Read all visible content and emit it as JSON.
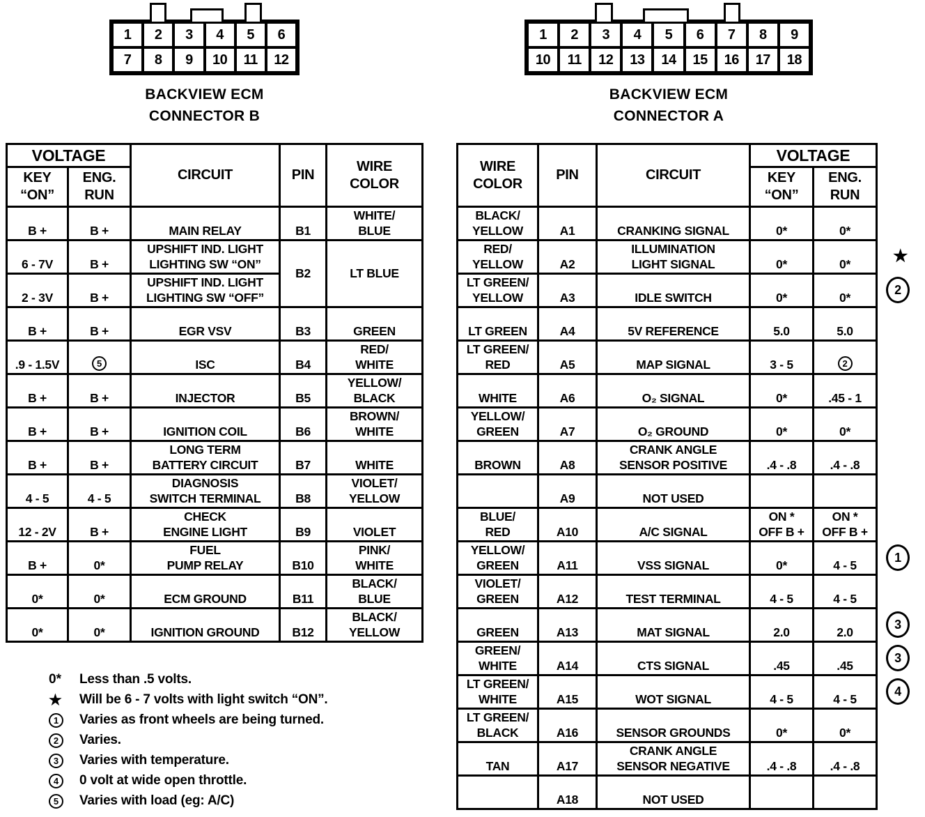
{
  "colors": {
    "ink": "#000000",
    "paper": "#ffffff"
  },
  "connector_b": {
    "label_line1": "BACKVIEW ECM",
    "label_line2": "CONNECTOR B",
    "row1": [
      "1",
      "2",
      "3",
      "4",
      "5",
      "6"
    ],
    "row2": [
      "7",
      "8",
      "9",
      "10",
      "11",
      "12"
    ]
  },
  "connector_a": {
    "label_line1": "BACKVIEW ECM",
    "label_line2": "CONNECTOR A",
    "row1": [
      "1",
      "2",
      "3",
      "4",
      "5",
      "6",
      "7",
      "8",
      "9"
    ],
    "row2": [
      "10",
      "11",
      "12",
      "13",
      "14",
      "15",
      "16",
      "17",
      "18"
    ]
  },
  "table_b": {
    "header": {
      "voltage": "VOLTAGE",
      "key_on": "KEY\n“ON”",
      "eng_run": "ENG.\nRUN",
      "circuit": "CIRCUIT",
      "pin": "PIN",
      "wire_color": "WIRE\nCOLOR"
    },
    "rows": [
      {
        "key_on": "B +",
        "eng_run": "B +",
        "circuit": "MAIN RELAY",
        "pin": "B1",
        "wire": "WHITE/\nBLUE"
      },
      {
        "key_on": "6 - 7V",
        "eng_run": "B +",
        "circuit": "UPSHIFT IND. LIGHT\nLIGHTING SW “ON”",
        "pin": "B2",
        "wire": "LT BLUE",
        "pin_rowspan": 2,
        "wire_rowspan": 2
      },
      {
        "key_on": "2 - 3V",
        "eng_run": "B +",
        "circuit": "UPSHIFT IND. LIGHT\nLIGHTING SW “OFF”",
        "pin": null,
        "wire": null
      },
      {
        "key_on": "B +",
        "eng_run": "B +",
        "circuit": "EGR VSV",
        "pin": "B3",
        "wire": "GREEN"
      },
      {
        "key_on": ".9 - 1.5V",
        "eng_run": {
          "circled": "5"
        },
        "circuit": "ISC",
        "pin": "B4",
        "wire": "RED/\nWHITE"
      },
      {
        "key_on": "B +",
        "eng_run": "B +",
        "circuit": "INJECTOR",
        "pin": "B5",
        "wire": "YELLOW/\nBLACK"
      },
      {
        "key_on": "B +",
        "eng_run": "B +",
        "circuit": "IGNITION COIL",
        "pin": "B6",
        "wire": "BROWN/\nWHITE"
      },
      {
        "key_on": "B +",
        "eng_run": "B +",
        "circuit": "LONG TERM\nBATTERY CIRCUIT",
        "pin": "B7",
        "wire": "WHITE"
      },
      {
        "key_on": "4 - 5",
        "eng_run": "4 - 5",
        "circuit": "DIAGNOSIS\nSWITCH TERMINAL",
        "pin": "B8",
        "wire": "VIOLET/\nYELLOW"
      },
      {
        "key_on": "12 - 2V",
        "eng_run": "B +",
        "circuit": "CHECK\nENGINE LIGHT",
        "pin": "B9",
        "wire": "VIOLET"
      },
      {
        "key_on": "B +",
        "eng_run": "0*",
        "circuit": "FUEL\nPUMP RELAY",
        "pin": "B10",
        "wire": "PINK/\nWHITE"
      },
      {
        "key_on": "0*",
        "eng_run": "0*",
        "circuit": "ECM GROUND",
        "pin": "B11",
        "wire": "BLACK/\nBLUE"
      },
      {
        "key_on": "0*",
        "eng_run": "0*",
        "circuit": "IGNITION GROUND",
        "pin": "B12",
        "wire": "BLACK/\nYELLOW"
      }
    ]
  },
  "table_a": {
    "header": {
      "wire_color": "WIRE\nCOLOR",
      "pin": "PIN",
      "circuit": "CIRCUIT",
      "voltage": "VOLTAGE",
      "key_on": "KEY\n“ON”",
      "eng_run": "ENG.\nRUN"
    },
    "rows": [
      {
        "wire": "BLACK/\nYELLOW",
        "pin": "A1",
        "circuit": "CRANKING SIGNAL",
        "key_on": "0*",
        "eng_run": "0*"
      },
      {
        "wire": "RED/\nYELLOW",
        "pin": "A2",
        "circuit": "ILLUMINATION\nLIGHT SIGNAL",
        "key_on": "0*",
        "eng_run": "0*",
        "annotation": {
          "star": true
        }
      },
      {
        "wire": "LT GREEN/\nYELLOW",
        "pin": "A3",
        "circuit": "IDLE SWITCH",
        "key_on": "0*",
        "eng_run": "0*",
        "annotation": {
          "circled": "2"
        }
      },
      {
        "wire": "LT GREEN",
        "pin": "A4",
        "circuit": "5V REFERENCE",
        "key_on": "5.0",
        "eng_run": "5.0"
      },
      {
        "wire": "LT GREEN/\nRED",
        "pin": "A5",
        "circuit": "MAP SIGNAL",
        "key_on": "3 - 5",
        "eng_run": {
          "circled": "2"
        }
      },
      {
        "wire": "WHITE",
        "pin": "A6",
        "circuit": "O₂ SIGNAL",
        "key_on": "0*",
        "eng_run": ".45 - 1"
      },
      {
        "wire": "YELLOW/\nGREEN",
        "pin": "A7",
        "circuit": "O₂ GROUND",
        "key_on": "0*",
        "eng_run": "0*"
      },
      {
        "wire": "BROWN",
        "pin": "A8",
        "circuit": "CRANK ANGLE\nSENSOR POSITIVE",
        "key_on": ".4 - .8",
        "eng_run": ".4 - .8"
      },
      {
        "wire": "",
        "pin": "A9",
        "circuit": "NOT USED",
        "key_on": "",
        "eng_run": ""
      },
      {
        "wire": "BLUE/\nRED",
        "pin": "A10",
        "circuit": "A/C SIGNAL",
        "key_on": "ON *\nOFF B +",
        "eng_run": "ON *\nOFF B +"
      },
      {
        "wire": "YELLOW/\nGREEN",
        "pin": "A11",
        "circuit": "VSS SIGNAL",
        "key_on": "0*",
        "eng_run": "4 - 5",
        "annotation": {
          "circled": "1"
        }
      },
      {
        "wire": "VIOLET/\nGREEN",
        "pin": "A12",
        "circuit": "TEST TERMINAL",
        "key_on": "4 - 5",
        "eng_run": "4 - 5"
      },
      {
        "wire": "GREEN",
        "pin": "A13",
        "circuit": "MAT SIGNAL",
        "key_on": "2.0",
        "eng_run": "2.0",
        "annotation": {
          "circled": "3"
        }
      },
      {
        "wire": "GREEN/\nWHITE",
        "pin": "A14",
        "circuit": "CTS SIGNAL",
        "key_on": ".45",
        "eng_run": ".45",
        "annotation": {
          "circled": "3"
        }
      },
      {
        "wire": "LT GREEN/\nWHITE",
        "pin": "A15",
        "circuit": "WOT SIGNAL",
        "key_on": "4 - 5",
        "eng_run": "4 - 5",
        "annotation": {
          "circled": "4"
        }
      },
      {
        "wire": "LT GREEN/\nBLACK",
        "pin": "A16",
        "circuit": "SENSOR GROUNDS",
        "key_on": "0*",
        "eng_run": "0*"
      },
      {
        "wire": "TAN",
        "pin": "A17",
        "circuit": "CRANK ANGLE\nSENSOR NEGATIVE",
        "key_on": ".4 - .8",
        "eng_run": ".4 - .8"
      },
      {
        "wire": "",
        "pin": "A18",
        "circuit": "NOT USED",
        "key_on": "",
        "eng_run": ""
      }
    ]
  },
  "legend": {
    "items": [
      {
        "type": "text",
        "symbol": "0*",
        "text": "Less than .5 volts."
      },
      {
        "type": "star",
        "symbol": "★",
        "text": "Will be 6 - 7 volts with light switch “ON”."
      },
      {
        "type": "circled",
        "symbol": "1",
        "text": "Varies as front wheels are being turned."
      },
      {
        "type": "circled",
        "symbol": "2",
        "text": "Varies."
      },
      {
        "type": "circled",
        "symbol": "3",
        "text": "Varies with temperature."
      },
      {
        "type": "circled",
        "symbol": "4",
        "text": "0 volt at wide open throttle."
      },
      {
        "type": "circled",
        "symbol": "5",
        "text": "Varies with load  (eg:  A/C)"
      }
    ]
  }
}
